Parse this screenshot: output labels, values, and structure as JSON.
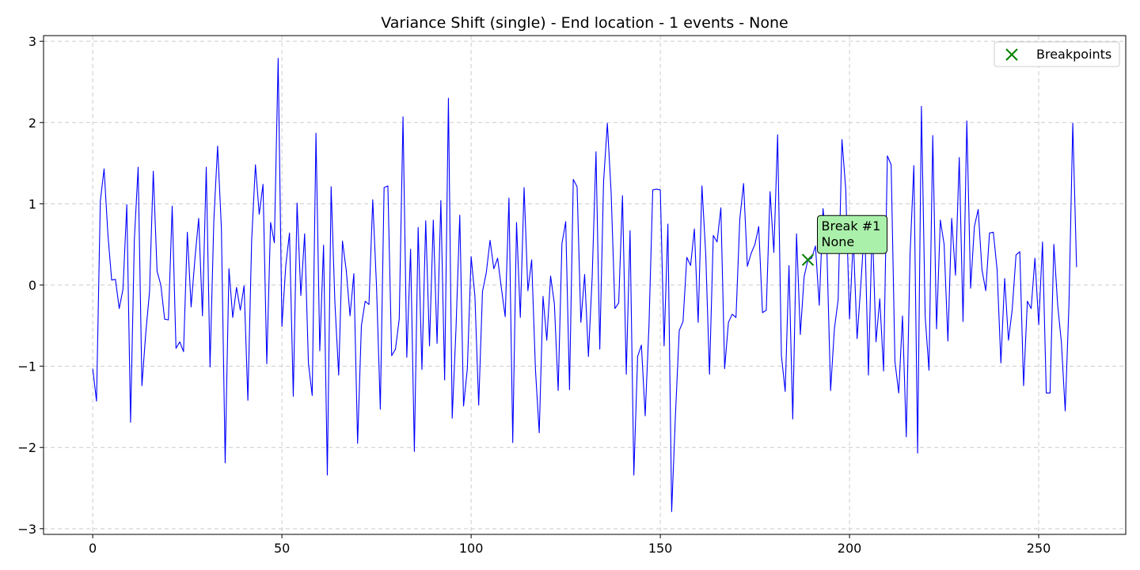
{
  "chart_data": {
    "type": "line",
    "title": "Variance Shift (single) - End location - 1 events - None",
    "xlabel": "",
    "ylabel": "",
    "xlim": [
      -13,
      273
    ],
    "ylim": [
      -3.07,
      3.07
    ],
    "xticks": [
      0,
      50,
      100,
      150,
      200,
      250
    ],
    "yticks": [
      -3,
      -2,
      -1,
      0,
      1,
      2,
      3
    ],
    "xtick_labels": [
      "0",
      "50",
      "100",
      "150",
      "200",
      "250"
    ],
    "ytick_labels": [
      "−3",
      "−2",
      "−1",
      "0",
      "1",
      "2",
      "3"
    ],
    "grid": true,
    "legend_position": "top-right",
    "line_color": "#0000ff",
    "marker_color": "#008000",
    "annotation_fill": "#aaf0aa",
    "series": [
      {
        "values": [
          -1.03,
          -1.43,
          1.03,
          1.43,
          0.63,
          0.06,
          0.07,
          -0.29,
          -0.05,
          0.99,
          -1.69,
          0.56,
          1.45,
          -1.24,
          -0.6,
          -0.09,
          1.4,
          0.17,
          0.0,
          -0.42,
          -0.43,
          0.97,
          -0.78,
          -0.7,
          -0.82,
          0.65,
          -0.27,
          0.32,
          0.82,
          -0.38,
          1.45,
          -1.01,
          0.79,
          1.71,
          0.7,
          -2.19,
          0.2,
          -0.4,
          -0.03,
          -0.31,
          -0.01,
          -1.42,
          0.55,
          1.48,
          0.87,
          1.24,
          -0.97,
          0.77,
          0.52,
          2.79,
          -0.51,
          0.23,
          0.64,
          -1.37,
          1.01,
          -0.13,
          0.63,
          -0.96,
          -1.36,
          1.87,
          -0.81,
          0.49,
          -2.34,
          1.21,
          -0.22,
          -1.11,
          0.54,
          0.18,
          -0.38,
          0.14,
          -1.95,
          -0.5,
          -0.2,
          -0.24,
          1.05,
          -0.02,
          -1.53,
          1.2,
          1.22,
          -0.87,
          -0.79,
          -0.42,
          2.07,
          -0.89,
          0.44,
          -2.05,
          0.71,
          -1.04,
          0.79,
          -0.75,
          0.8,
          -0.72,
          1.04,
          -1.17,
          2.3,
          -1.64,
          -0.54,
          0.86,
          -1.49,
          -1.03,
          0.35,
          -0.14,
          -1.48,
          -0.08,
          0.15,
          0.55,
          0.2,
          0.33,
          -0.04,
          -0.39,
          1.07,
          -1.94,
          0.77,
          -0.4,
          1.2,
          -0.07,
          0.31,
          -1.04,
          -1.82,
          -0.14,
          -0.68,
          0.11,
          -0.23,
          -1.3,
          0.51,
          0.78,
          -1.29,
          1.3,
          1.21,
          -0.46,
          0.13,
          -0.88,
          0.11,
          1.64,
          -0.79,
          1.27,
          1.99,
          1.14,
          -0.29,
          -0.22,
          1.1,
          -1.1,
          0.67,
          -2.34,
          -0.88,
          -0.74,
          -1.61,
          -0.5,
          1.17,
          1.18,
          1.17,
          -0.75,
          0.75,
          -2.79,
          -1.6,
          -0.56,
          -0.45,
          0.34,
          0.24,
          0.69,
          -0.46,
          1.22,
          0.38,
          -1.1,
          0.61,
          0.53,
          0.95,
          -1.03,
          -0.46,
          -0.36,
          -0.4,
          0.81,
          1.25,
          0.23,
          0.39,
          0.5,
          0.72,
          -0.34,
          -0.31,
          1.15,
          0.4,
          1.85,
          -0.87,
          -1.31,
          0.24,
          -1.65,
          0.63,
          -0.61,
          0.1,
          0.31,
          0.33,
          0.48,
          -0.25,
          0.94,
          0.46,
          -1.3,
          -0.54,
          -0.18,
          1.79,
          1.18,
          -0.42,
          0.58,
          -0.66,
          0.01,
          0.76,
          -1.11,
          0.77,
          -0.7,
          -0.17,
          -1.06,
          1.59,
          1.48,
          -0.94,
          -1.33,
          -0.38,
          -1.87,
          0.38,
          1.47,
          -2.07,
          2.2,
          -0.39,
          -1.05,
          1.84,
          -0.54,
          0.8,
          0.5,
          -0.69,
          0.82,
          0.12,
          1.57,
          -0.45,
          2.02,
          -0.04,
          0.72,
          0.93,
          0.19,
          -0.07,
          0.64,
          0.65,
          0.19,
          -0.96,
          0.08,
          -0.68,
          -0.3,
          0.37,
          0.41,
          -1.24,
          -0.2,
          -0.29,
          0.33,
          -0.49,
          0.53,
          -1.33,
          -1.33,
          0.5,
          -0.24,
          -0.71,
          -1.55,
          -0.23,
          1.99,
          0.22
        ]
      }
    ],
    "legend": [
      "Breakpoints"
    ],
    "breakpoints": [
      {
        "x": 189,
        "y": 0.31
      }
    ],
    "annotations": [
      {
        "line1": "Break #1",
        "line2": "None"
      }
    ]
  }
}
